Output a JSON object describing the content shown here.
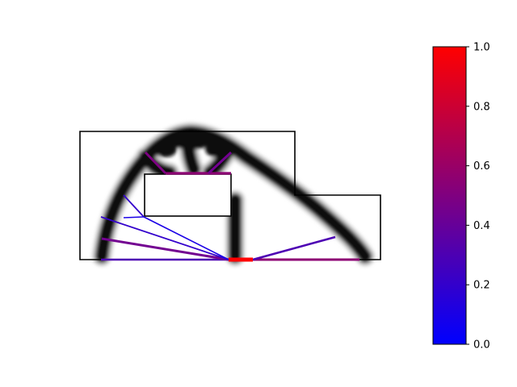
{
  "figure": {
    "type": "topology-optimization-truss-diagram",
    "domain_outline_color": "#000000",
    "density_field_color": "#000000",
    "member_colormap": "blue-red"
  },
  "colorbar": {
    "min": 0.0,
    "max": 1.0,
    "gradient_low": "#0000ff",
    "gradient_high": "#ff0000",
    "ticks": [
      {
        "value": 0.0,
        "label": "0.0"
      },
      {
        "value": 0.2,
        "label": "0.2"
      },
      {
        "value": 0.4,
        "label": "0.4"
      },
      {
        "value": 0.6,
        "label": "0.6"
      },
      {
        "value": 0.8,
        "label": "0.8"
      },
      {
        "value": 1.0,
        "label": "1.0"
      }
    ]
  },
  "members": [
    {
      "id": "top-bar",
      "value": 0.55
    },
    {
      "id": "top-left-strut",
      "value": 0.5
    },
    {
      "id": "top-right-strut",
      "value": 0.45
    },
    {
      "id": "bottom-left-bar",
      "value": 0.3
    },
    {
      "id": "bottom-right-bar",
      "value": 0.55
    },
    {
      "id": "support-bar",
      "value": 1.0
    },
    {
      "id": "left-fan-long",
      "value": 0.45
    },
    {
      "id": "left-fan-mid",
      "value": 0.3
    },
    {
      "id": "left-fan-short",
      "value": 0.2
    },
    {
      "id": "left-fan-upper",
      "value": 0.2
    },
    {
      "id": "inner-tie",
      "value": 0.2
    },
    {
      "id": "right-diagonal",
      "value": 0.3
    }
  ]
}
